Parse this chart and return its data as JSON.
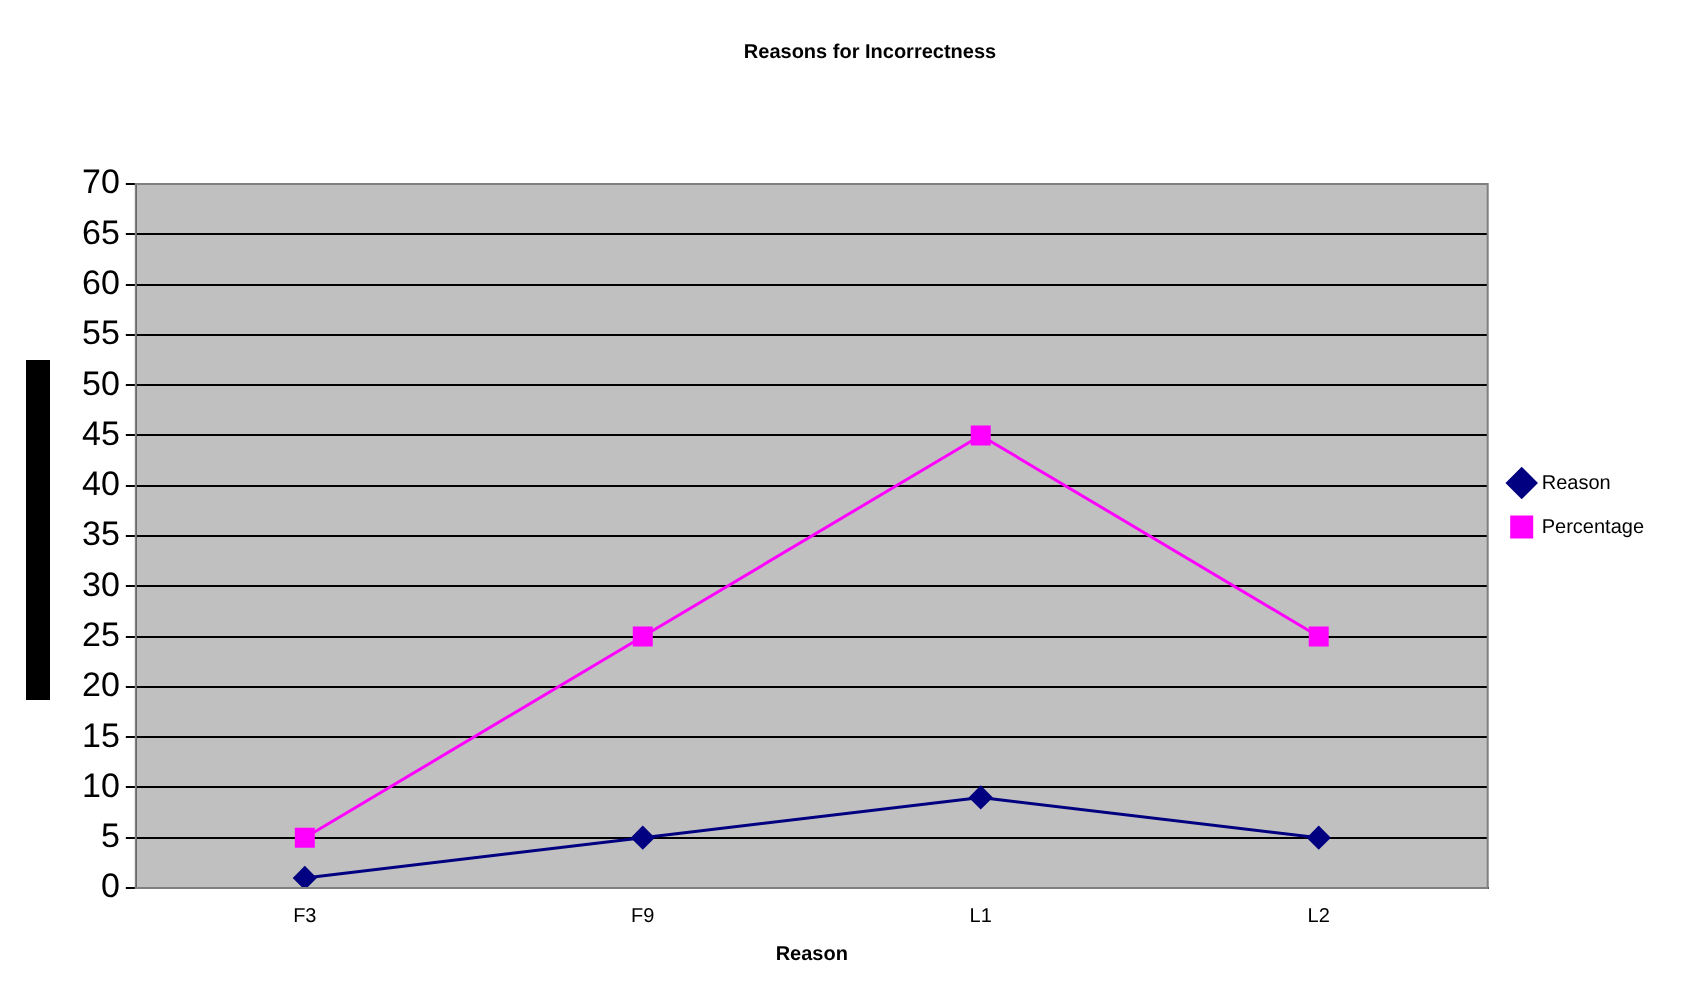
{
  "chart_data": {
    "type": "line",
    "title": "Reasons for Incorrectness",
    "xlabel": "Reason",
    "categories": [
      "F3",
      "F9",
      "L1",
      "L2"
    ],
    "series": [
      {
        "name": "Reason",
        "color": "#000080",
        "values": [
          1,
          5,
          9,
          5
        ],
        "marker": "diamond"
      },
      {
        "name": "Percentage",
        "color": "#ff00ff",
        "values": [
          5,
          25,
          45,
          25
        ],
        "marker": "square"
      }
    ],
    "ylim": [
      0,
      70
    ],
    "yticks": [
      0,
      5,
      10,
      15,
      20,
      25,
      30,
      35,
      40,
      45,
      50,
      55,
      60,
      65,
      70
    ],
    "grid": "y",
    "legend": "right",
    "line_style": "solid"
  }
}
